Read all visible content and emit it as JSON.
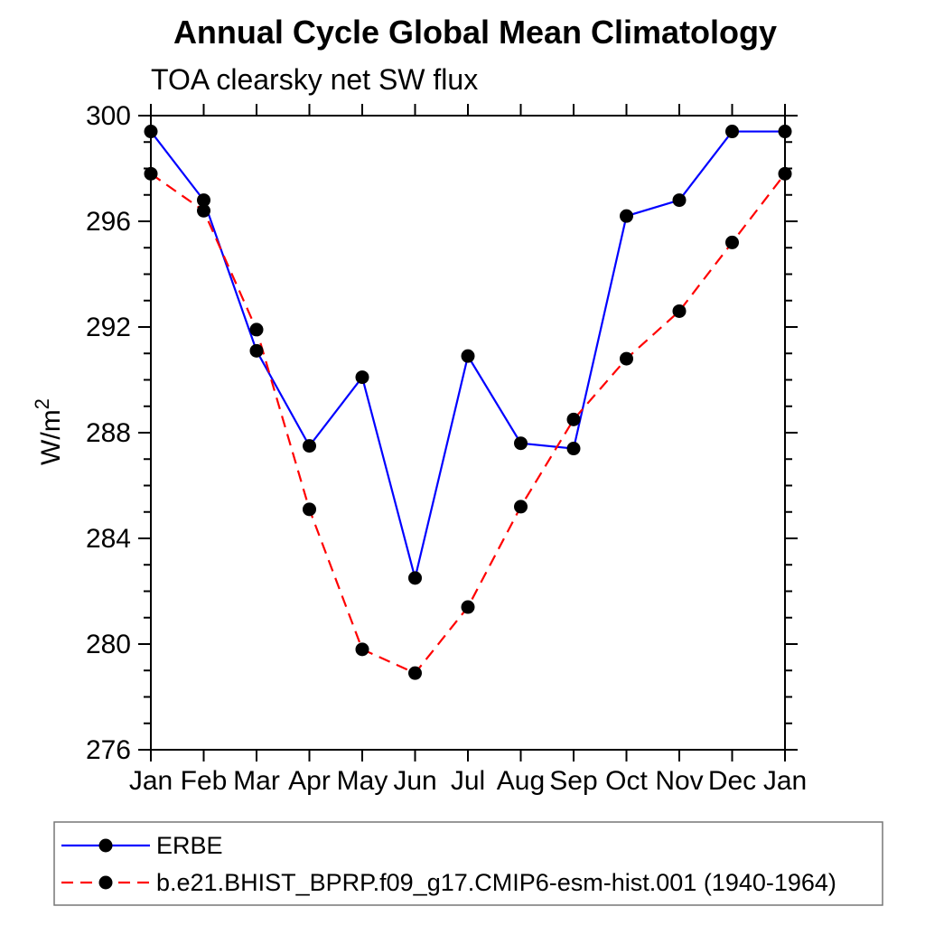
{
  "page": {
    "background_color": "#ffffff",
    "text_color": "#000000"
  },
  "chart_data": {
    "type": "line",
    "title": "Annual Cycle Global Mean Climatology",
    "subtitle": "TOA clearsky net SW flux",
    "xlabel": "",
    "ylabel_base": "W/m",
    "ylabel_exp": "2",
    "ylim": [
      276,
      300
    ],
    "ytick_major_step": 4,
    "ytick_minor_step": 1,
    "y_ticks": [
      276,
      280,
      284,
      288,
      292,
      296,
      300
    ],
    "grid": false,
    "legend_position": "bottom-left-box",
    "categories": [
      "Jan",
      "Feb",
      "Mar",
      "Apr",
      "May",
      "Jun",
      "Jul",
      "Aug",
      "Sep",
      "Oct",
      "Nov",
      "Dec",
      "Jan"
    ],
    "series": [
      {
        "name": "ERBE",
        "color": "#0000ff",
        "line_style": "solid",
        "marker": "filled-circle",
        "marker_color": "#000000",
        "values": [
          299.4,
          296.8,
          291.1,
          287.5,
          290.1,
          282.5,
          290.9,
          287.6,
          287.4,
          296.2,
          296.8,
          299.4,
          299.4
        ]
      },
      {
        "name": "b.e21.BHIST_BPRP.f09_g17.CMIP6-esm-hist.001 (1940-1964)",
        "color": "#ff0000",
        "line_style": "dashed",
        "marker": "filled-circle",
        "marker_color": "#000000",
        "values": [
          297.8,
          296.4,
          291.9,
          285.1,
          279.8,
          278.9,
          281.4,
          285.2,
          288.5,
          290.8,
          292.6,
          295.2,
          297.8
        ]
      }
    ]
  }
}
